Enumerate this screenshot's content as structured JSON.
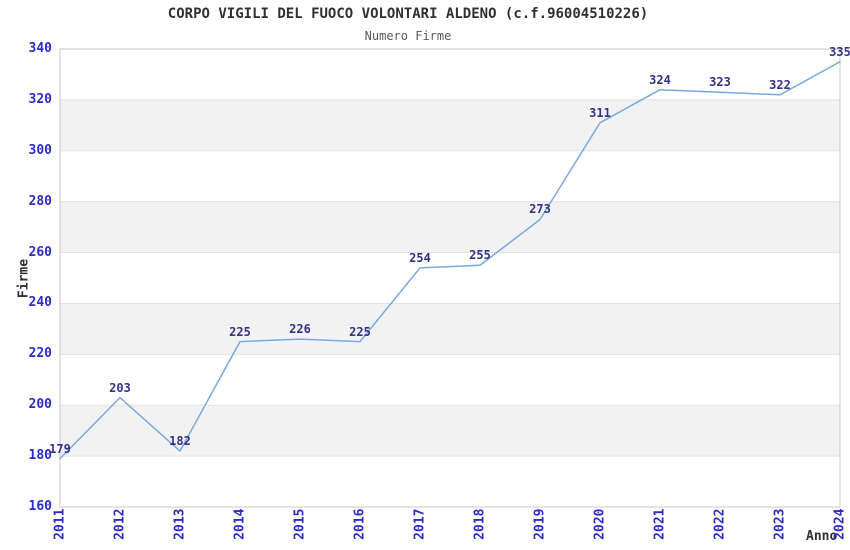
{
  "chart_data": {
    "type": "line",
    "title": "CORPO VIGILI DEL FUOCO VOLONTARI ALDENO (c.f.96004510226)",
    "subtitle": "Numero Firme",
    "xlabel": "Anno",
    "ylabel": "Firme",
    "x": [
      2011,
      2012,
      2013,
      2014,
      2015,
      2016,
      2017,
      2018,
      2019,
      2020,
      2021,
      2022,
      2023,
      2024
    ],
    "series": [
      {
        "name": "Numero Firme",
        "values": [
          179,
          203,
          182,
          225,
          226,
          225,
          254,
          255,
          273,
          311,
          324,
          323,
          322,
          335
        ]
      }
    ],
    "ylim": [
      160,
      340
    ],
    "ytick_step": 20,
    "xtick_rotation": -90,
    "point_labels_visible": true,
    "grid": "alternating-horizontal-bands",
    "legend": "none"
  },
  "colors": {
    "line": "#7AA8E0",
    "tick_label": "#2B2BCC",
    "data_label": "#333388",
    "band_fill": "#F2F2F2",
    "grid_line": "#E3E3E3",
    "plot_border": "#C8C8C8",
    "title": "#303030",
    "subtitle": "#5A5A5A",
    "axis_title": "#303030",
    "background": "#FFFFFF"
  }
}
